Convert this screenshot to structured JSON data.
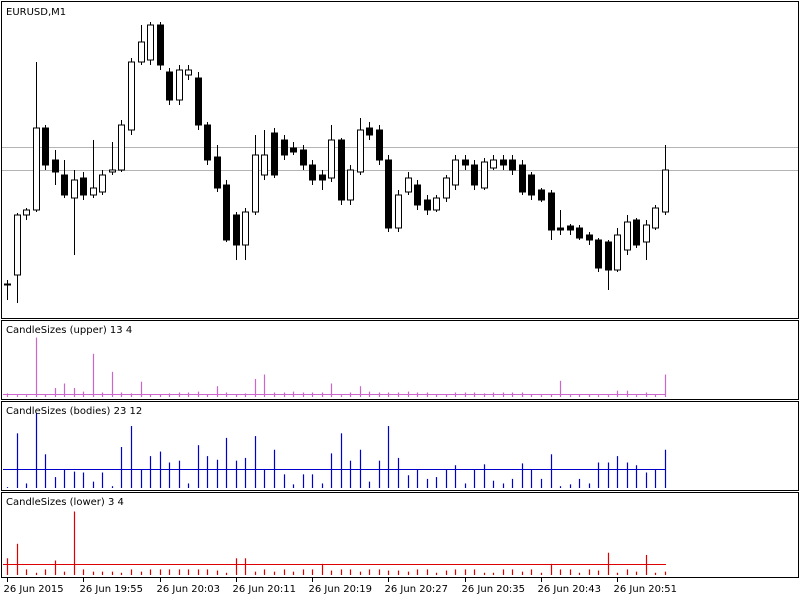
{
  "chart_data": [
    {
      "type": "candlestick",
      "title": "EURUSD,M1",
      "categories": [
        "26 Jun 2015",
        null,
        null,
        null,
        null,
        null,
        null,
        null,
        "26 Jun 19:55",
        null,
        null,
        null,
        null,
        null,
        null,
        null,
        "26 Jun 20:03",
        null,
        null,
        null,
        null,
        null,
        null,
        null,
        "26 Jun 20:11",
        null,
        null,
        null,
        null,
        null,
        null,
        null,
        "26 Jun 20:19",
        null,
        null,
        null,
        null,
        null,
        null,
        null,
        "26 Jun 20:27",
        null,
        null,
        null,
        null,
        null,
        null,
        null,
        "26 Jun 20:35",
        null,
        null,
        null,
        null,
        null,
        null,
        null,
        "26 Jun 20:43",
        null,
        null,
        null,
        null,
        null,
        null,
        null,
        "26 Jun 20:51",
        null,
        null,
        null,
        null,
        null
      ],
      "open": [
        35,
        45,
        105,
        110,
        192,
        160,
        145,
        122,
        142,
        125,
        128,
        148,
        150,
        190,
        258,
        260,
        295,
        248,
        220,
        245,
        242,
        195,
        163,
        135,
        105,
        75,
        108,
        145,
        187,
        180,
        172,
        170,
        155,
        145,
        142,
        180,
        120,
        148,
        192,
        190,
        160,
        92,
        128,
        135,
        120,
        110,
        122,
        135,
        160,
        155,
        132,
        152,
        160,
        160,
        155,
        145,
        130,
        127,
        92,
        94,
        92,
        85,
        80,
        78,
        50,
        70,
        100,
        78,
        92,
        108
      ],
      "high": [
        40,
        107,
        112,
        258,
        195,
        170,
        160,
        150,
        148,
        180,
        150,
        178,
        200,
        262,
        295,
        298,
        298,
        252,
        255,
        255,
        248,
        198,
        175,
        140,
        108,
        112,
        185,
        190,
        192,
        185,
        178,
        175,
        160,
        150,
        195,
        182,
        155,
        202,
        198,
        195,
        165,
        130,
        148,
        140,
        125,
        125,
        145,
        165,
        165,
        160,
        162,
        165,
        165,
        165,
        160,
        148,
        132,
        130,
        110,
        96,
        95,
        88,
        82,
        80,
        92,
        105,
        102,
        100,
        115,
        175
      ],
      "low": [
        20,
        17,
        100,
        108,
        150,
        135,
        122,
        65,
        120,
        122,
        125,
        145,
        148,
        185,
        255,
        255,
        250,
        215,
        215,
        240,
        190,
        155,
        128,
        78,
        60,
        60,
        105,
        140,
        142,
        160,
        165,
        150,
        135,
        130,
        138,
        115,
        115,
        145,
        180,
        155,
        88,
        88,
        125,
        110,
        105,
        108,
        118,
        130,
        150,
        130,
        130,
        150,
        150,
        145,
        125,
        120,
        118,
        80,
        85,
        85,
        80,
        75,
        48,
        30,
        48,
        65,
        72,
        60,
        90,
        105
      ],
      "close": [
        36,
        105,
        110,
        192,
        155,
        148,
        125,
        140,
        125,
        132,
        145,
        150,
        195,
        258,
        278,
        295,
        255,
        220,
        250,
        250,
        195,
        160,
        132,
        80,
        75,
        108,
        165,
        165,
        145,
        165,
        168,
        155,
        140,
        140,
        180,
        120,
        150,
        190,
        185,
        160,
        92,
        125,
        142,
        115,
        110,
        122,
        142,
        160,
        155,
        135,
        158,
        160,
        155,
        150,
        128,
        125,
        120,
        90,
        90,
        90,
        82,
        80,
        52,
        50,
        85,
        98,
        75,
        95,
        112,
        150
      ],
      "price_lines": [
        173,
        150
      ],
      "ylim": [
        2,
        318
      ]
    },
    {
      "type": "histogram",
      "title": "CandleSizes (upper) 13 4",
      "color": "#cc66cc",
      "level": 3,
      "values": [
        4,
        2,
        2,
        66,
        3,
        10,
        15,
        10,
        6,
        48,
        5,
        28,
        5,
        4,
        17,
        3,
        3,
        4,
        5,
        5,
        6,
        3,
        12,
        5,
        3,
        4,
        20,
        25,
        5,
        5,
        6,
        5,
        5,
        5,
        15,
        2,
        5,
        12,
        6,
        5,
        5,
        5,
        6,
        5,
        5,
        3,
        3,
        5,
        5,
        5,
        4,
        5,
        5,
        5,
        5,
        3,
        2,
        3,
        18,
        2,
        3,
        3,
        2,
        2,
        7,
        7,
        2,
        5,
        3,
        25
      ],
      "ylim": [
        0,
        80
      ]
    },
    {
      "type": "histogram",
      "title": "CandleSizes (bodies) 23 12",
      "color": "#0000cc",
      "level": 21,
      "values": [
        1,
        60,
        5,
        82,
        37,
        12,
        20,
        18,
        17,
        7,
        17,
        2,
        45,
        68,
        20,
        35,
        40,
        28,
        30,
        5,
        47,
        35,
        31,
        55,
        30,
        33,
        57,
        20,
        42,
        15,
        4,
        15,
        15,
        5,
        38,
        60,
        30,
        42,
        7,
        30,
        68,
        33,
        14,
        20,
        10,
        12,
        20,
        25,
        5,
        20,
        26,
        8,
        5,
        10,
        27,
        20,
        10,
        37,
        2,
        4,
        10,
        5,
        28,
        28,
        35,
        28,
        25,
        17,
        20,
        42
      ],
      "ylim": [
        0,
        90
      ]
    },
    {
      "type": "histogram",
      "title": "CandleSizes (lower) 3 4",
      "color": "#dd0000",
      "level": 10,
      "values": [
        15,
        28,
        5,
        2,
        5,
        13,
        3,
        57,
        5,
        3,
        3,
        3,
        2,
        5,
        3,
        5,
        5,
        5,
        5,
        5,
        5,
        5,
        4,
        2,
        15,
        15,
        3,
        5,
        3,
        5,
        3,
        5,
        5,
        10,
        4,
        5,
        5,
        3,
        5,
        5,
        4,
        4,
        3,
        5,
        5,
        2,
        4,
        5,
        5,
        5,
        2,
        2,
        5,
        5,
        3,
        5,
        2,
        10,
        5,
        5,
        2,
        5,
        4,
        20,
        2,
        5,
        3,
        18,
        2,
        3
      ],
      "ylim": [
        0,
        70
      ]
    }
  ]
}
